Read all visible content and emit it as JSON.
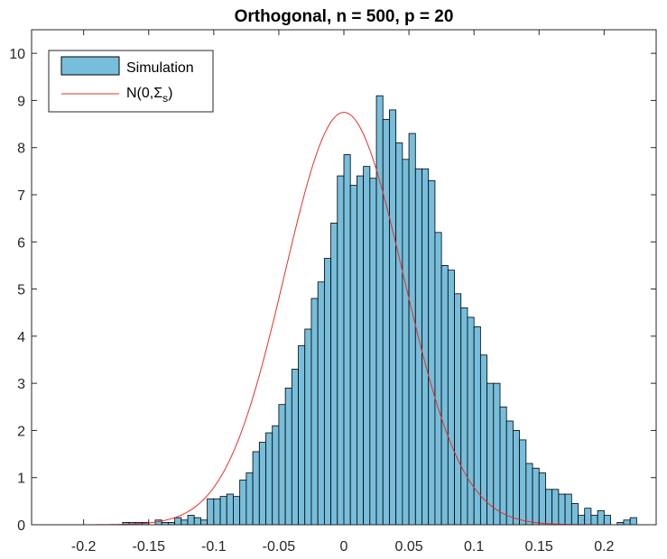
{
  "chart_data": {
    "type": "bar",
    "title": "Orthogonal, n = 500, p = 20",
    "xlabel": "",
    "ylabel": "",
    "xlim": [
      -0.24,
      0.24
    ],
    "ylim": [
      0,
      10.5
    ],
    "xticks": [
      -0.2,
      -0.15,
      -0.1,
      -0.05,
      0,
      0.05,
      0.1,
      0.15,
      0.2
    ],
    "xtick_labels": [
      "-0.2",
      "-0.15",
      "-0.1",
      "-0.05",
      "0",
      "0.05",
      "0.1",
      "0.15",
      "0.2"
    ],
    "yticks": [
      0,
      1,
      2,
      3,
      4,
      5,
      6,
      7,
      8,
      9,
      10
    ],
    "ytick_labels": [
      "0",
      "1",
      "2",
      "3",
      "4",
      "5",
      "6",
      "7",
      "8",
      "9",
      "10"
    ],
    "grid": false,
    "legend_position": "top-left",
    "bin_width": 0.005,
    "bin_start": -0.17,
    "values": [
      0.05,
      0.05,
      0.05,
      0.05,
      0.0,
      0.1,
      0.05,
      0.05,
      0.15,
      0.1,
      0.2,
      0.15,
      0.1,
      0.55,
      0.55,
      0.6,
      0.65,
      0.6,
      0.95,
      1.1,
      1.55,
      1.75,
      1.95,
      2.1,
      2.55,
      2.9,
      3.3,
      3.8,
      4.15,
      4.8,
      5.15,
      5.65,
      6.4,
      7.4,
      7.85,
      7.2,
      7.4,
      7.6,
      7.35,
      9.1,
      8.6,
      8.8,
      8.1,
      7.75,
      8.3,
      7.55,
      7.55,
      7.3,
      6.2,
      5.5,
      5.4,
      4.9,
      4.6,
      4.4,
      4.2,
      3.6,
      3.0,
      3.0,
      2.5,
      2.2,
      2.0,
      1.8,
      1.3,
      1.2,
      1.1,
      0.75,
      0.75,
      0.65,
      0.65,
      0.45,
      0.2,
      0.35,
      0.2,
      0.3,
      0.2,
      0.0,
      0.05,
      0.1,
      0.15
    ],
    "series": [
      {
        "name": "Simulation",
        "kind": "histogram",
        "color": "#77BEDB"
      },
      {
        "name": "N(0,Σs)",
        "kind": "line",
        "color": "#E3302B",
        "mean": 0,
        "sd": 0.0456
      }
    ],
    "legend": {
      "entries": [
        {
          "label": "Simulation"
        },
        {
          "label_main": "N(0,Σ",
          "label_sub": "s",
          "label_end": ")"
        }
      ]
    }
  }
}
